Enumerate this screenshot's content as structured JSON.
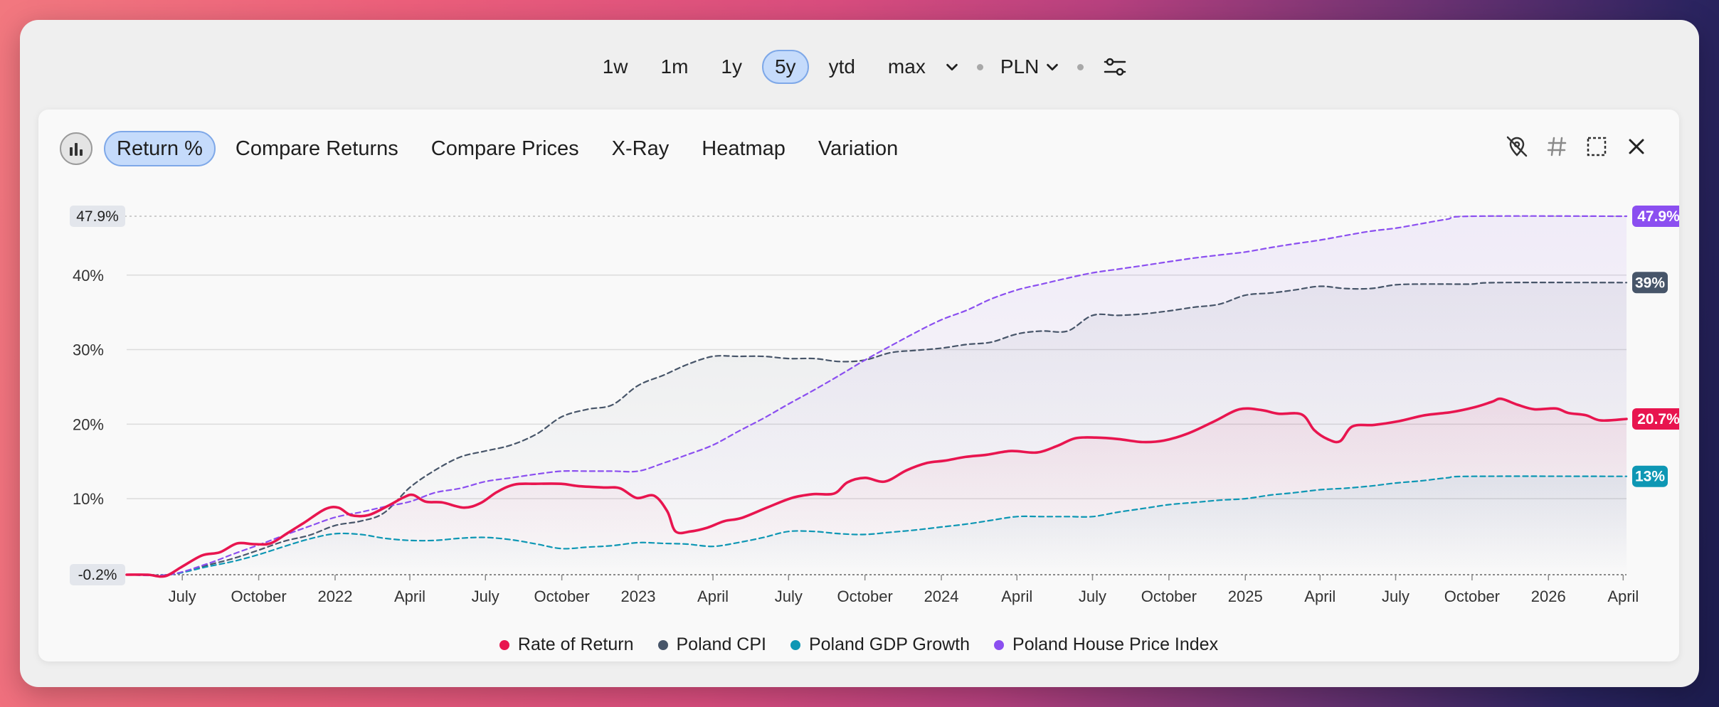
{
  "toolbar": {
    "ranges": [
      "1w",
      "1m",
      "1y",
      "5y",
      "ytd",
      "max"
    ],
    "active_range": "5y",
    "currency": "PLN",
    "settings_icon": "sliders-icon"
  },
  "tabs": {
    "icon": "bar-chart-icon",
    "items": [
      "Return %",
      "Compare Returns",
      "Compare Prices",
      "X-Ray",
      "Heatmap",
      "Variation"
    ],
    "active": "Return %"
  },
  "tools": [
    "hide-values-icon",
    "hash-icon",
    "expand-icon",
    "close-icon"
  ],
  "colors": {
    "rate_of_return": "#e8154f",
    "cpi": "#475569",
    "gdp": "#0e97b4",
    "house_price": "#8b4ff0"
  },
  "chart_data": {
    "type": "line",
    "xlabel": "",
    "ylabel": "",
    "ylim": [
      -0.2,
      47.9
    ],
    "yticks": [
      10,
      20,
      30,
      40
    ],
    "ytick_labels": [
      "10%",
      "20%",
      "30%",
      "40%"
    ],
    "xtick_labels": [
      "July",
      "October",
      "2022",
      "April",
      "July",
      "October",
      "2023",
      "April",
      "July",
      "October",
      "2024",
      "April",
      "July",
      "October",
      "2025",
      "April",
      "July",
      "October",
      "2026",
      "April"
    ],
    "x_ticks": [
      "2021-07-01",
      "2021-10-01",
      "2022-01-01",
      "2022-04-01",
      "2022-07-01",
      "2022-10-01",
      "2023-01-01",
      "2023-04-01",
      "2023-07-01",
      "2023-10-01",
      "2024-01-01",
      "2024-04-01",
      "2024-07-01",
      "2024-10-01",
      "2025-01-01",
      "2025-04-01",
      "2025-07-01",
      "2025-10-01",
      "2026-01-01",
      "2026-04-01"
    ],
    "x_range": [
      "2021-04-25",
      "2026-04-05"
    ],
    "grid": true,
    "legend_position": "bottom",
    "min_label": "-0.2%",
    "max_label": "47.9%",
    "series": [
      {
        "name": "Rate of Return",
        "key": "rate_of_return",
        "end_label": "20.7%",
        "dashed": false,
        "points": [
          [
            "2021-04-25",
            -0.2
          ],
          [
            "2021-05-20",
            -0.2
          ],
          [
            "2021-06-10",
            -0.4
          ],
          [
            "2021-07-01",
            0.9
          ],
          [
            "2021-07-25",
            2.4
          ],
          [
            "2021-08-15",
            2.8
          ],
          [
            "2021-09-05",
            4.0
          ],
          [
            "2021-09-25",
            3.9
          ],
          [
            "2021-10-15",
            4.0
          ],
          [
            "2021-11-05",
            5.4
          ],
          [
            "2021-11-25",
            6.8
          ],
          [
            "2021-12-20",
            8.6
          ],
          [
            "2022-01-05",
            8.8
          ],
          [
            "2022-01-20",
            7.8
          ],
          [
            "2022-02-10",
            7.8
          ],
          [
            "2022-03-05",
            9.0
          ],
          [
            "2022-03-25",
            10.2
          ],
          [
            "2022-04-05",
            10.5
          ],
          [
            "2022-04-20",
            9.6
          ],
          [
            "2022-05-10",
            9.5
          ],
          [
            "2022-06-05",
            8.8
          ],
          [
            "2022-06-25",
            9.4
          ],
          [
            "2022-07-15",
            10.9
          ],
          [
            "2022-08-05",
            11.9
          ],
          [
            "2022-08-30",
            12.0
          ],
          [
            "2022-09-30",
            12.0
          ],
          [
            "2022-10-20",
            11.7
          ],
          [
            "2022-11-20",
            11.5
          ],
          [
            "2022-12-10",
            11.4
          ],
          [
            "2022-12-30",
            10.1
          ],
          [
            "2023-01-20",
            10.4
          ],
          [
            "2023-02-05",
            8.3
          ],
          [
            "2023-02-15",
            5.6
          ],
          [
            "2023-03-05",
            5.6
          ],
          [
            "2023-03-25",
            6.1
          ],
          [
            "2023-04-15",
            7.0
          ],
          [
            "2023-05-05",
            7.4
          ],
          [
            "2023-06-05",
            8.8
          ],
          [
            "2023-07-05",
            10.1
          ],
          [
            "2023-07-30",
            10.6
          ],
          [
            "2023-08-25",
            10.7
          ],
          [
            "2023-09-10",
            12.2
          ],
          [
            "2023-10-01",
            12.8
          ],
          [
            "2023-10-25",
            12.3
          ],
          [
            "2023-11-20",
            13.8
          ],
          [
            "2023-12-15",
            14.8
          ],
          [
            "2024-01-05",
            15.1
          ],
          [
            "2024-01-30",
            15.6
          ],
          [
            "2024-02-25",
            15.9
          ],
          [
            "2024-03-25",
            16.4
          ],
          [
            "2024-04-25",
            16.2
          ],
          [
            "2024-05-20",
            17.1
          ],
          [
            "2024-06-10",
            18.1
          ],
          [
            "2024-07-05",
            18.2
          ],
          [
            "2024-08-01",
            18.0
          ],
          [
            "2024-08-30",
            17.6
          ],
          [
            "2024-09-25",
            17.8
          ],
          [
            "2024-10-25",
            18.8
          ],
          [
            "2024-11-25",
            20.4
          ],
          [
            "2024-12-25",
            22.0
          ],
          [
            "2025-01-20",
            21.9
          ],
          [
            "2025-02-10",
            21.4
          ],
          [
            "2025-03-10",
            21.3
          ],
          [
            "2025-03-25",
            19.2
          ],
          [
            "2025-04-10",
            18.0
          ],
          [
            "2025-04-25",
            17.7
          ],
          [
            "2025-05-10",
            19.7
          ],
          [
            "2025-06-05",
            19.9
          ],
          [
            "2025-07-05",
            20.4
          ],
          [
            "2025-08-05",
            21.2
          ],
          [
            "2025-09-05",
            21.6
          ],
          [
            "2025-10-05",
            22.3
          ],
          [
            "2025-10-25",
            23.0
          ],
          [
            "2025-11-05",
            23.4
          ],
          [
            "2025-11-25",
            22.6
          ],
          [
            "2025-12-15",
            22.0
          ],
          [
            "2026-01-10",
            22.1
          ],
          [
            "2026-01-25",
            21.5
          ],
          [
            "2026-02-15",
            21.2
          ],
          [
            "2026-03-05",
            20.5
          ],
          [
            "2026-04-05",
            20.7
          ]
        ]
      },
      {
        "name": "Poland CPI",
        "key": "cpi",
        "end_label": "39%",
        "dashed": true,
        "points": [
          [
            "2021-04-25",
            -0.2
          ],
          [
            "2021-06-15",
            -0.2
          ],
          [
            "2021-08-01",
            1.1
          ],
          [
            "2021-09-01",
            2.0
          ],
          [
            "2021-10-01",
            3.1
          ],
          [
            "2021-11-01",
            4.3
          ],
          [
            "2021-12-01",
            5.1
          ],
          [
            "2022-01-01",
            6.4
          ],
          [
            "2022-02-01",
            7.0
          ],
          [
            "2022-03-01",
            8.1
          ],
          [
            "2022-04-01",
            11.5
          ],
          [
            "2022-05-01",
            13.8
          ],
          [
            "2022-06-01",
            15.6
          ],
          [
            "2022-07-01",
            16.4
          ],
          [
            "2022-08-01",
            17.2
          ],
          [
            "2022-09-01",
            18.7
          ],
          [
            "2022-10-01",
            21.0
          ],
          [
            "2022-11-01",
            22.0
          ],
          [
            "2022-12-01",
            22.6
          ],
          [
            "2023-01-01",
            25.2
          ],
          [
            "2023-02-01",
            26.6
          ],
          [
            "2023-03-01",
            28.0
          ],
          [
            "2023-04-01",
            29.1
          ],
          [
            "2023-05-01",
            29.1
          ],
          [
            "2023-06-01",
            29.1
          ],
          [
            "2023-07-01",
            28.8
          ],
          [
            "2023-08-01",
            28.8
          ],
          [
            "2023-09-01",
            28.4
          ],
          [
            "2023-10-01",
            28.6
          ],
          [
            "2023-11-01",
            29.6
          ],
          [
            "2023-12-01",
            29.9
          ],
          [
            "2024-01-01",
            30.2
          ],
          [
            "2024-02-01",
            30.7
          ],
          [
            "2024-03-01",
            31.0
          ],
          [
            "2024-04-01",
            32.1
          ],
          [
            "2024-05-01",
            32.5
          ],
          [
            "2024-06-01",
            32.5
          ],
          [
            "2024-07-01",
            34.6
          ],
          [
            "2024-08-01",
            34.6
          ],
          [
            "2024-09-01",
            34.8
          ],
          [
            "2024-10-01",
            35.2
          ],
          [
            "2024-11-01",
            35.7
          ],
          [
            "2024-12-01",
            36.1
          ],
          [
            "2025-01-01",
            37.3
          ],
          [
            "2025-02-01",
            37.6
          ],
          [
            "2025-03-01",
            38.0
          ],
          [
            "2025-04-01",
            38.5
          ],
          [
            "2025-05-01",
            38.2
          ],
          [
            "2025-06-01",
            38.2
          ],
          [
            "2025-07-01",
            38.7
          ],
          [
            "2025-08-01",
            38.8
          ],
          [
            "2025-09-01",
            38.8
          ],
          [
            "2025-10-01",
            38.8
          ],
          [
            "2025-11-01",
            39.0
          ],
          [
            "2026-04-05",
            39.0
          ]
        ]
      },
      {
        "name": "Poland GDP Growth",
        "key": "gdp",
        "end_label": "13%",
        "dashed": true,
        "points": [
          [
            "2021-04-25",
            -0.2
          ],
          [
            "2021-06-15",
            -0.2
          ],
          [
            "2021-08-01",
            0.9
          ],
          [
            "2021-09-01",
            1.6
          ],
          [
            "2021-10-01",
            2.5
          ],
          [
            "2021-11-01",
            3.6
          ],
          [
            "2021-12-01",
            4.6
          ],
          [
            "2022-01-01",
            5.3
          ],
          [
            "2022-02-01",
            5.2
          ],
          [
            "2022-03-01",
            4.7
          ],
          [
            "2022-04-01",
            4.4
          ],
          [
            "2022-05-01",
            4.4
          ],
          [
            "2022-06-01",
            4.7
          ],
          [
            "2022-07-01",
            4.8
          ],
          [
            "2022-08-01",
            4.5
          ],
          [
            "2022-09-01",
            3.9
          ],
          [
            "2022-10-01",
            3.3
          ],
          [
            "2022-11-01",
            3.5
          ],
          [
            "2022-12-01",
            3.7
          ],
          [
            "2023-01-01",
            4.1
          ],
          [
            "2023-02-01",
            4.0
          ],
          [
            "2023-03-01",
            3.9
          ],
          [
            "2023-04-01",
            3.6
          ],
          [
            "2023-05-01",
            4.1
          ],
          [
            "2023-06-01",
            4.8
          ],
          [
            "2023-07-01",
            5.6
          ],
          [
            "2023-08-01",
            5.6
          ],
          [
            "2023-09-01",
            5.3
          ],
          [
            "2023-10-01",
            5.2
          ],
          [
            "2023-11-01",
            5.5
          ],
          [
            "2023-12-01",
            5.8
          ],
          [
            "2024-01-01",
            6.2
          ],
          [
            "2024-02-01",
            6.6
          ],
          [
            "2024-03-01",
            7.1
          ],
          [
            "2024-04-01",
            7.6
          ],
          [
            "2024-05-01",
            7.6
          ],
          [
            "2024-06-01",
            7.6
          ],
          [
            "2024-07-01",
            7.6
          ],
          [
            "2024-08-01",
            8.2
          ],
          [
            "2024-09-01",
            8.7
          ],
          [
            "2024-10-01",
            9.2
          ],
          [
            "2024-11-01",
            9.5
          ],
          [
            "2024-12-01",
            9.8
          ],
          [
            "2025-01-01",
            10.0
          ],
          [
            "2025-02-01",
            10.5
          ],
          [
            "2025-03-01",
            10.8
          ],
          [
            "2025-04-01",
            11.2
          ],
          [
            "2025-05-01",
            11.4
          ],
          [
            "2025-06-01",
            11.7
          ],
          [
            "2025-07-01",
            12.1
          ],
          [
            "2025-08-01",
            12.4
          ],
          [
            "2025-09-01",
            12.8
          ],
          [
            "2025-10-01",
            13.0
          ],
          [
            "2026-04-05",
            13.0
          ]
        ]
      },
      {
        "name": "Poland House Price Index",
        "key": "house_price",
        "end_label": "47.9%",
        "dashed": true,
        "points": [
          [
            "2021-04-25",
            -0.2
          ],
          [
            "2021-06-15",
            -0.2
          ],
          [
            "2021-08-01",
            1.3
          ],
          [
            "2021-09-01",
            2.6
          ],
          [
            "2021-10-01",
            3.8
          ],
          [
            "2021-11-01",
            5.1
          ],
          [
            "2021-12-01",
            6.3
          ],
          [
            "2022-01-01",
            7.5
          ],
          [
            "2022-02-01",
            8.2
          ],
          [
            "2022-03-01",
            8.9
          ],
          [
            "2022-04-01",
            9.6
          ],
          [
            "2022-05-01",
            10.8
          ],
          [
            "2022-06-01",
            11.4
          ],
          [
            "2022-07-01",
            12.3
          ],
          [
            "2022-08-01",
            12.8
          ],
          [
            "2022-09-01",
            13.3
          ],
          [
            "2022-10-01",
            13.7
          ],
          [
            "2022-11-01",
            13.7
          ],
          [
            "2022-12-01",
            13.7
          ],
          [
            "2023-01-01",
            13.7
          ],
          [
            "2023-02-01",
            14.8
          ],
          [
            "2023-03-01",
            15.9
          ],
          [
            "2023-04-01",
            17.2
          ],
          [
            "2023-05-01",
            19.0
          ],
          [
            "2023-06-01",
            20.8
          ],
          [
            "2023-07-01",
            22.7
          ],
          [
            "2023-08-01",
            24.6
          ],
          [
            "2023-09-01",
            26.6
          ],
          [
            "2023-10-01",
            28.6
          ],
          [
            "2023-11-01",
            30.5
          ],
          [
            "2023-12-01",
            32.3
          ],
          [
            "2024-01-01",
            34.0
          ],
          [
            "2024-02-01",
            35.3
          ],
          [
            "2024-03-01",
            36.8
          ],
          [
            "2024-04-01",
            38.0
          ],
          [
            "2024-05-01",
            38.8
          ],
          [
            "2024-06-01",
            39.6
          ],
          [
            "2024-07-01",
            40.3
          ],
          [
            "2024-08-01",
            40.8
          ],
          [
            "2024-09-01",
            41.3
          ],
          [
            "2024-10-01",
            41.8
          ],
          [
            "2024-11-01",
            42.3
          ],
          [
            "2024-12-01",
            42.7
          ],
          [
            "2025-01-01",
            43.1
          ],
          [
            "2025-02-01",
            43.7
          ],
          [
            "2025-03-01",
            44.2
          ],
          [
            "2025-04-01",
            44.7
          ],
          [
            "2025-05-01",
            45.3
          ],
          [
            "2025-06-01",
            45.9
          ],
          [
            "2025-07-01",
            46.3
          ],
          [
            "2025-08-01",
            46.9
          ],
          [
            "2025-09-01",
            47.5
          ],
          [
            "2025-10-01",
            47.9
          ],
          [
            "2026-04-05",
            47.9
          ]
        ]
      }
    ]
  }
}
